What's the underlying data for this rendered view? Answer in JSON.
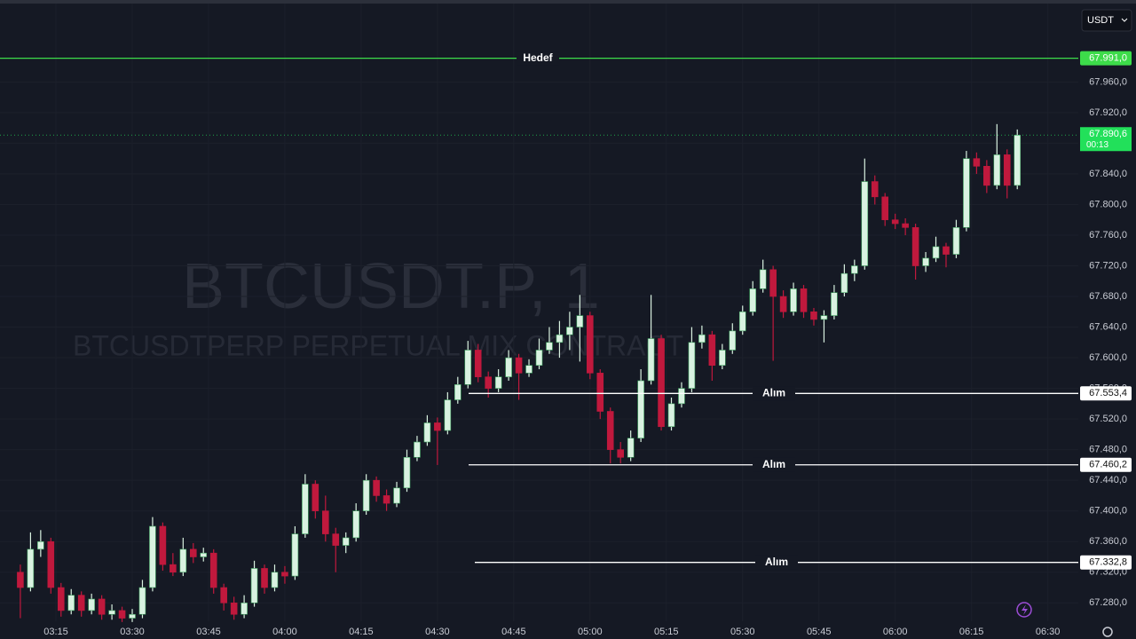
{
  "chart_data": {
    "type": "candlestick",
    "watermark": {
      "title": "BTCUSDT.P, 1",
      "subtitle": "BTCUSDTPERP PERPETUAL MIX CONTRACT"
    },
    "currency": "USDT",
    "up_color": "#d9f2e1",
    "down_color": "#c0193d",
    "x": [
      "03:08",
      "03:10",
      "03:12",
      "03:14",
      "03:16",
      "03:18",
      "03:20",
      "03:22",
      "03:24",
      "03:26",
      "03:28",
      "03:30",
      "03:32",
      "03:34",
      "03:36",
      "03:38",
      "03:40",
      "03:42",
      "03:44",
      "03:46",
      "03:48",
      "03:50",
      "03:52",
      "03:54",
      "03:56",
      "03:58",
      "04:00",
      "04:02",
      "04:04",
      "04:06",
      "04:08",
      "04:10",
      "04:12",
      "04:14",
      "04:16",
      "04:18",
      "04:20",
      "04:22",
      "04:24",
      "04:26",
      "04:28",
      "04:30",
      "04:32",
      "04:34",
      "04:36",
      "04:38",
      "04:40",
      "04:42",
      "04:44",
      "04:46",
      "04:48",
      "04:50",
      "04:52",
      "04:54",
      "04:56",
      "04:58",
      "05:00",
      "05:02",
      "05:04",
      "05:06",
      "05:08",
      "05:10",
      "05:12",
      "05:14",
      "05:16",
      "05:18",
      "05:20",
      "05:22",
      "05:24",
      "05:26",
      "05:28",
      "05:30",
      "05:32",
      "05:34",
      "05:36",
      "05:38",
      "05:40",
      "05:42",
      "05:44",
      "05:46",
      "05:48",
      "05:50",
      "05:52",
      "05:54",
      "05:56",
      "05:58",
      "06:00",
      "06:02",
      "06:04",
      "06:06",
      "06:08",
      "06:10",
      "06:12",
      "06:14",
      "06:16",
      "06:18",
      "06:20",
      "06:22",
      "06:24"
    ],
    "candles": [
      [
        67320,
        67330,
        67260,
        67300
      ],
      [
        67300,
        67372,
        67295,
        67350
      ],
      [
        67350,
        67375,
        67340,
        67360
      ],
      [
        67360,
        67365,
        67292,
        67300
      ],
      [
        67300,
        67306,
        67262,
        67270
      ],
      [
        67270,
        67298,
        67265,
        67290
      ],
      [
        67290,
        67295,
        67262,
        67270
      ],
      [
        67270,
        67292,
        67265,
        67285
      ],
      [
        67285,
        67290,
        67258,
        67265
      ],
      [
        67265,
        67278,
        67258,
        67270
      ],
      [
        67270,
        67275,
        67255,
        67260
      ],
      [
        67260,
        67272,
        67255,
        67265
      ],
      [
        67265,
        67310,
        67260,
        67300
      ],
      [
        67300,
        67392,
        67295,
        67380
      ],
      [
        67380,
        67385,
        67322,
        67330
      ],
      [
        67330,
        67345,
        67315,
        67320
      ],
      [
        67320,
        67365,
        67315,
        67350
      ],
      [
        67350,
        67358,
        67332,
        67340
      ],
      [
        67340,
        67352,
        67334,
        67345
      ],
      [
        67345,
        67350,
        67292,
        67300
      ],
      [
        67300,
        67305,
        67270,
        67280
      ],
      [
        67280,
        67288,
        67258,
        67265
      ],
      [
        67265,
        67290,
        67260,
        67280
      ],
      [
        67280,
        67335,
        67275,
        67325
      ],
      [
        67325,
        67330,
        67292,
        67300
      ],
      [
        67300,
        67330,
        67295,
        67320
      ],
      [
        67320,
        67328,
        67305,
        67315
      ],
      [
        67315,
        67380,
        67310,
        67370
      ],
      [
        67370,
        67448,
        67365,
        67435
      ],
      [
        67435,
        67440,
        67390,
        67400
      ],
      [
        67400,
        67420,
        67360,
        67370
      ],
      [
        67370,
        67378,
        67320,
        67355
      ],
      [
        67355,
        67372,
        67345,
        67365
      ],
      [
        67365,
        67410,
        67360,
        67400
      ],
      [
        67400,
        67448,
        67395,
        67440
      ],
      [
        67440,
        67445,
        67412,
        67420
      ],
      [
        67420,
        67428,
        67400,
        67410
      ],
      [
        67410,
        67438,
        67405,
        67430
      ],
      [
        67430,
        67480,
        67425,
        67470
      ],
      [
        67470,
        67498,
        67465,
        67490
      ],
      [
        67490,
        67525,
        67485,
        67515
      ],
      [
        67515,
        67522,
        67460,
        67505
      ],
      [
        67505,
        67555,
        67500,
        67545
      ],
      [
        67545,
        67575,
        67540,
        67565
      ],
      [
        67565,
        67622,
        67560,
        67610
      ],
      [
        67610,
        67618,
        67568,
        67575
      ],
      [
        67575,
        67582,
        67548,
        67560
      ],
      [
        67560,
        67585,
        67555,
        67575
      ],
      [
        67575,
        67610,
        67570,
        67600
      ],
      [
        67600,
        67605,
        67545,
        67580
      ],
      [
        67580,
        67598,
        67575,
        67590
      ],
      [
        67590,
        67625,
        67585,
        67610
      ],
      [
        67610,
        67640,
        67605,
        67620
      ],
      [
        67620,
        67648,
        67600,
        67630
      ],
      [
        67630,
        67660,
        67610,
        67640
      ],
      [
        67640,
        67682,
        67595,
        67655
      ],
      [
        67655,
        67660,
        67572,
        67580
      ],
      [
        67580,
        67585,
        67520,
        67530
      ],
      [
        67530,
        67535,
        67462,
        67480
      ],
      [
        67480,
        67490,
        67462,
        67470
      ],
      [
        67470,
        67505,
        67465,
        67495
      ],
      [
        67495,
        67585,
        67490,
        67570
      ],
      [
        67570,
        67682,
        67565,
        67625
      ],
      [
        67625,
        67630,
        67505,
        67510
      ],
      [
        67510,
        67548,
        67505,
        67540
      ],
      [
        67540,
        67568,
        67535,
        67560
      ],
      [
        67560,
        67640,
        67555,
        67620
      ],
      [
        67620,
        67642,
        67612,
        67630
      ],
      [
        67630,
        67635,
        67570,
        67590
      ],
      [
        67590,
        67618,
        67585,
        67610
      ],
      [
        67610,
        67645,
        67605,
        67635
      ],
      [
        67635,
        67668,
        67630,
        67660
      ],
      [
        67660,
        67700,
        67655,
        67690
      ],
      [
        67690,
        67728,
        67685,
        67715
      ],
      [
        67715,
        67720,
        67596,
        67680
      ],
      [
        67680,
        67688,
        67652,
        67660
      ],
      [
        67660,
        67698,
        67655,
        67690
      ],
      [
        67690,
        67695,
        67652,
        67660
      ],
      [
        67660,
        67665,
        67642,
        67650
      ],
      [
        67650,
        67662,
        67620,
        67655
      ],
      [
        67655,
        67695,
        67650,
        67685
      ],
      [
        67685,
        67722,
        67680,
        67710
      ],
      [
        67710,
        67728,
        67700,
        67720
      ],
      [
        67720,
        67860,
        67715,
        67830
      ],
      [
        67830,
        67838,
        67800,
        67810
      ],
      [
        67810,
        67815,
        67772,
        67780
      ],
      [
        67780,
        67788,
        67768,
        67775
      ],
      [
        67775,
        67782,
        67760,
        67770
      ],
      [
        67770,
        67775,
        67702,
        67720
      ],
      [
        67720,
        67738,
        67712,
        67730
      ],
      [
        67730,
        67758,
        67725,
        67745
      ],
      [
        67745,
        67750,
        67718,
        67735
      ],
      [
        67735,
        67780,
        67730,
        67770
      ],
      [
        67770,
        67870,
        67765,
        67860
      ],
      [
        67860,
        67868,
        67840,
        67850
      ],
      [
        67850,
        67858,
        67815,
        67825
      ],
      [
        67825,
        67905,
        67820,
        67865
      ],
      [
        67865,
        67872,
        67808,
        67825
      ],
      [
        67825,
        67898,
        67820,
        67890.6
      ]
    ],
    "xlim": [
      "03:04",
      "06:36"
    ],
    "xticks": [
      "03:15",
      "03:30",
      "03:45",
      "04:00",
      "04:15",
      "04:30",
      "04:45",
      "05:00",
      "05:15",
      "05:30",
      "05:45",
      "06:00",
      "06:15",
      "06:30"
    ],
    "ylim": [
      67256,
      68067
    ],
    "yticks": [
      {
        "value": 67280,
        "label": "67.280,0"
      },
      {
        "value": 67320,
        "label": "67.320,0"
      },
      {
        "value": 67360,
        "label": "67.360,0"
      },
      {
        "value": 67400,
        "label": "67.400,0"
      },
      {
        "value": 67440,
        "label": "67.440,0"
      },
      {
        "value": 67480,
        "label": "67.480,0"
      },
      {
        "value": 67520,
        "label": "67.520,0"
      },
      {
        "value": 67560,
        "label": "67.560,0"
      },
      {
        "value": 67600,
        "label": "67.600,0"
      },
      {
        "value": 67640,
        "label": "67.640,0"
      },
      {
        "value": 67680,
        "label": "67.680,0"
      },
      {
        "value": 67720,
        "label": "67.720,0"
      },
      {
        "value": 67760,
        "label": "67.760,0"
      },
      {
        "value": 67800,
        "label": "67.800,0"
      },
      {
        "value": 67840,
        "label": "67.840,0"
      },
      {
        "value": 67880,
        "label": "67.880,0"
      },
      {
        "value": 67920,
        "label": "67.920,0"
      },
      {
        "value": 67960,
        "label": "67.960,0"
      }
    ],
    "levels": [
      {
        "name": "Hedef",
        "value": 67991,
        "label": "67.991,0",
        "color": "#3ddc4a"
      },
      {
        "name": "Alım",
        "value": 67553.4,
        "label": "67.553,4",
        "color": "#ffffff"
      },
      {
        "name": "Alım",
        "value": 67460.2,
        "label": "67.460,2",
        "color": "#ffffff"
      },
      {
        "name": "Alım",
        "value": 67332.8,
        "label": "67.332,8",
        "color": "#ffffff"
      }
    ],
    "last_price": {
      "value": 67890.6,
      "label": "67.890,6",
      "countdown": "00:13",
      "color": "#22e05a"
    }
  }
}
